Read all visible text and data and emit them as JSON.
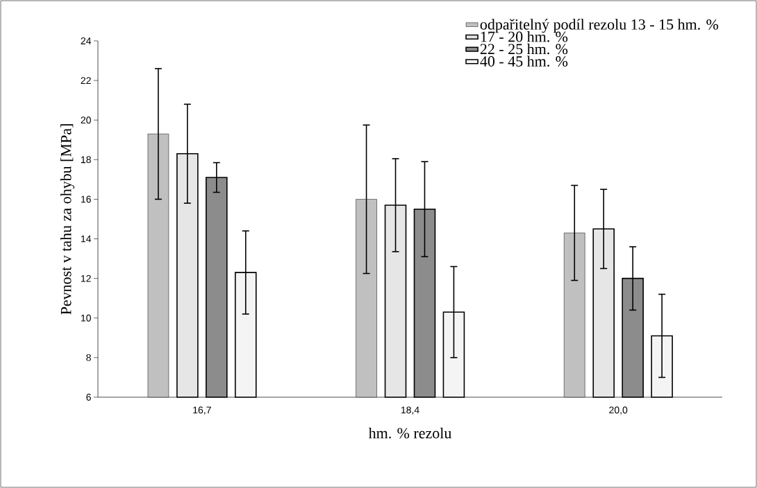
{
  "chart_data": {
    "type": "bar",
    "xlabel": "hm. % rezolu",
    "ylabel": "Pevnost v tahu za ohybu [MPa]",
    "categories": [
      "16,7",
      "18,4",
      "20,0"
    ],
    "series": [
      {
        "name": "odpařitelný podíl rezolu 13 - 15 hm. %",
        "color": "#c0c0c0",
        "values": [
          19.3,
          16.0,
          14.3
        ],
        "errors": [
          3.3,
          3.75,
          2.4
        ]
      },
      {
        "name": "17 - 20 hm. %",
        "color": "#e6e6e6",
        "values": [
          18.3,
          15.7,
          14.5
        ],
        "errors": [
          2.5,
          2.35,
          2.0
        ]
      },
      {
        "name": "22 - 25 hm. %",
        "color": "#8c8c8c",
        "values": [
          17.1,
          15.5,
          12.0
        ],
        "errors": [
          0.75,
          2.4,
          1.6
        ]
      },
      {
        "name": "40 - 45 hm. %",
        "color": "#f4f4f4",
        "values": [
          12.3,
          10.3,
          9.1
        ],
        "errors": [
          2.1,
          2.3,
          2.1
        ]
      }
    ],
    "ylim": [
      6,
      24
    ],
    "yticks": [
      6,
      8,
      10,
      12,
      14,
      16,
      18,
      20,
      22,
      24
    ],
    "grid": false,
    "legend": "top right"
  }
}
